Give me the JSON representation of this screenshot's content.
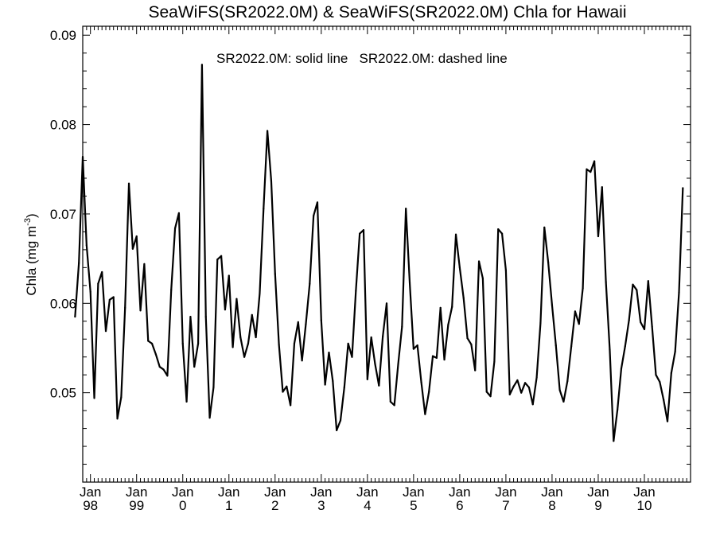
{
  "chart_data": {
    "type": "line",
    "title": "SeaWiFS(SR2022.0M) & SeaWiFS(SR2022.0M)  Chla for Hawaii",
    "annotation": "SR2022.0M: solid line   SR2022.0M: dashed line",
    "ylabel": "Chla (mg m",
    "ylabel_sup": "-3",
    "ylabel_close": ")",
    "ylim": [
      0.04,
      0.091
    ],
    "yticks": [
      0.05,
      0.06,
      0.07,
      0.08,
      0.09
    ],
    "ytick_labels": [
      "0.05",
      "0.06",
      "0.07",
      "0.08",
      "0.09"
    ],
    "xlim": [
      1997.833,
      2011.0
    ],
    "xticks": [
      {
        "x": 1998.0,
        "top": "Jan",
        "bottom": "98"
      },
      {
        "x": 1999.0,
        "top": "Jan",
        "bottom": "99"
      },
      {
        "x": 2000.0,
        "top": "Jan",
        "bottom": "0"
      },
      {
        "x": 2001.0,
        "top": "Jan",
        "bottom": "1"
      },
      {
        "x": 2002.0,
        "top": "Jan",
        "bottom": "2"
      },
      {
        "x": 2003.0,
        "top": "Jan",
        "bottom": "3"
      },
      {
        "x": 2004.0,
        "top": "Jan",
        "bottom": "4"
      },
      {
        "x": 2005.0,
        "top": "Jan",
        "bottom": "5"
      },
      {
        "x": 2006.0,
        "top": "Jan",
        "bottom": "6"
      },
      {
        "x": 2007.0,
        "top": "Jan",
        "bottom": "7"
      },
      {
        "x": 2008.0,
        "top": "Jan",
        "bottom": "8"
      },
      {
        "x": 2009.0,
        "top": "Jan",
        "bottom": "9"
      },
      {
        "x": 2010.0,
        "top": "Jan",
        "bottom": "10"
      }
    ],
    "grid": false,
    "series": [
      {
        "style": "solid",
        "color": "#000000",
        "start": "1997-09",
        "step": "month",
        "values": [
          0.0585,
          0.0645,
          0.0764,
          0.0665,
          0.0613,
          0.0494,
          0.0622,
          0.0635,
          0.0569,
          0.0604,
          0.0607,
          0.0471,
          0.0495,
          0.0595,
          0.0734,
          0.0661,
          0.0675,
          0.0592,
          0.0644,
          0.0558,
          0.0555,
          0.0543,
          0.0529,
          0.0526,
          0.0519,
          0.0615,
          0.0684,
          0.0701,
          0.0555,
          0.049,
          0.0585,
          0.0529,
          0.0555,
          0.0867,
          0.0585,
          0.0472,
          0.0506,
          0.0649,
          0.0653,
          0.0593,
          0.0631,
          0.0551,
          0.0605,
          0.0562,
          0.054,
          0.0555,
          0.0587,
          0.0562,
          0.0611,
          0.0706,
          0.0793,
          0.0737,
          0.0633,
          0.0554,
          0.0501,
          0.0507,
          0.0486,
          0.0555,
          0.0579,
          0.0536,
          0.0577,
          0.0622,
          0.0698,
          0.0713,
          0.0581,
          0.0509,
          0.0545,
          0.0513,
          0.0458,
          0.0469,
          0.0506,
          0.0555,
          0.054,
          0.0614,
          0.0678,
          0.0682,
          0.0515,
          0.0562,
          0.0532,
          0.0508,
          0.0563,
          0.06,
          0.049,
          0.0486,
          0.0532,
          0.0574,
          0.0706,
          0.0623,
          0.0549,
          0.0553,
          0.0512,
          0.0476,
          0.0501,
          0.0541,
          0.0539,
          0.0595,
          0.0537,
          0.0576,
          0.0596,
          0.0677,
          0.064,
          0.0606,
          0.0561,
          0.0554,
          0.0525,
          0.0647,
          0.0628,
          0.0501,
          0.0496,
          0.0535,
          0.0683,
          0.0678,
          0.0637,
          0.0498,
          0.0507,
          0.0514,
          0.05,
          0.0511,
          0.0506,
          0.0487,
          0.0517,
          0.0578,
          0.0685,
          0.0646,
          0.0598,
          0.0553,
          0.0503,
          0.049,
          0.0513,
          0.0552,
          0.0591,
          0.0577,
          0.0617,
          0.075,
          0.0747,
          0.0759,
          0.0675,
          0.073,
          0.0624,
          0.0548,
          0.0446,
          0.0481,
          0.0527,
          0.0552,
          0.0581,
          0.0621,
          0.0615,
          0.0579,
          0.0571,
          0.0625,
          0.0574,
          0.052,
          0.0512,
          0.0492,
          0.0468,
          0.0522,
          0.0546,
          0.0612,
          0.0729
        ]
      }
    ]
  }
}
